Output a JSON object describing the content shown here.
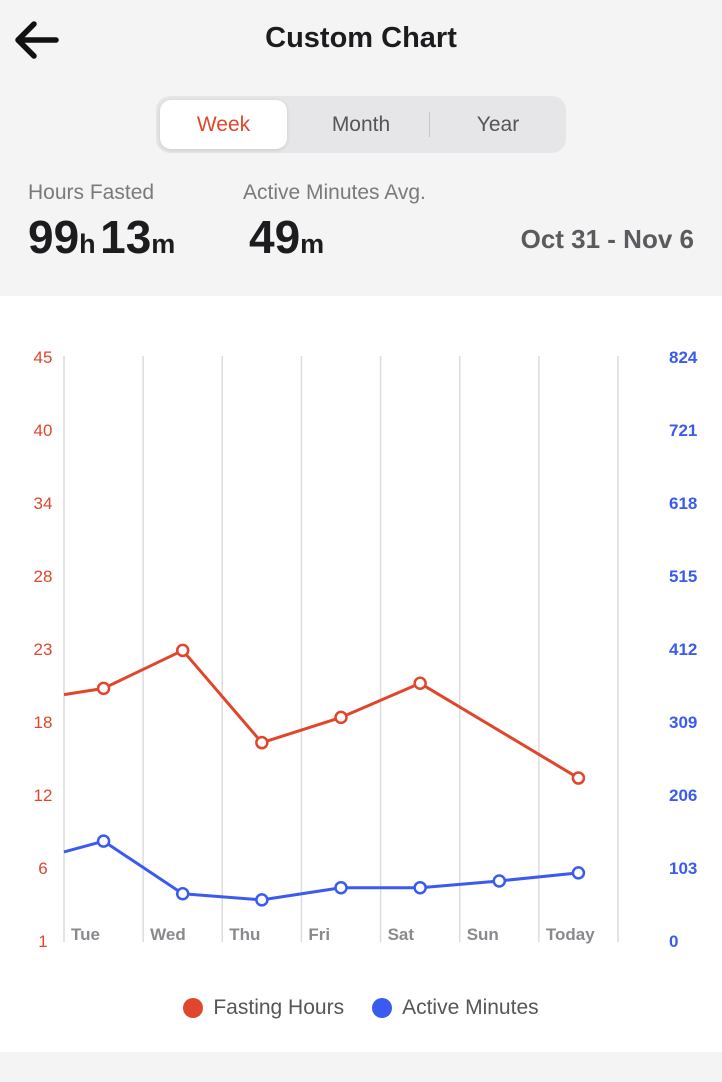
{
  "header": {
    "title": "Custom Chart",
    "back_icon": "arrow-left-icon"
  },
  "segmented": {
    "items": [
      "Week",
      "Month",
      "Year"
    ],
    "selected": "Week"
  },
  "stats": {
    "hours_fasted": {
      "label": "Hours Fasted",
      "h_value": "99",
      "h_unit": "h",
      "m_value": "13",
      "m_unit": "m"
    },
    "active_minutes": {
      "label": "Active Minutes Avg.",
      "value": "49",
      "unit": "m"
    },
    "date_range": "Oct 31 - Nov 6"
  },
  "colors": {
    "accent": "#e0462c",
    "fasting": "#e0462c",
    "active": "#3b5bf0",
    "grid": "#dcdcdf",
    "label": "#8a8a8e"
  },
  "chart_data": {
    "type": "line",
    "categories": [
      "Tue",
      "Wed",
      "Thu",
      "Fri",
      "Sat",
      "Sun",
      "Today"
    ],
    "left_axis": {
      "ticks": [
        "45",
        "40",
        "34",
        "28",
        "23",
        "18",
        "12",
        "6",
        "1"
      ],
      "ylim": [
        1,
        45
      ]
    },
    "right_axis": {
      "ticks": [
        "824",
        "721",
        "618",
        "515",
        "412",
        "309",
        "206",
        "103",
        "0"
      ],
      "ylim": [
        0,
        824
      ]
    },
    "grid": true,
    "legend_position": "bottom",
    "series": [
      {
        "name": "Fasting Hours",
        "axis": "left",
        "color": "#e0462c",
        "leading_value": 18.2,
        "points": [
          {
            "x": 0.5,
            "y": 18.7
          },
          {
            "x": 1.5,
            "y": 21.7
          },
          {
            "x": 2.5,
            "y": 14.4
          },
          {
            "x": 3.5,
            "y": 16.4
          },
          {
            "x": 4.5,
            "y": 19.1
          },
          {
            "x": 6.5,
            "y": 11.6
          }
        ]
      },
      {
        "name": "Active Minutes",
        "axis": "right",
        "color": "#3b5bf0",
        "leading_value": 89,
        "points": [
          {
            "x": 0.5,
            "y": 105
          },
          {
            "x": 1.5,
            "y": 27
          },
          {
            "x": 2.5,
            "y": 18
          },
          {
            "x": 3.5,
            "y": 36
          },
          {
            "x": 4.5,
            "y": 36
          },
          {
            "x": 5.5,
            "y": 46
          },
          {
            "x": 6.5,
            "y": 58
          }
        ]
      }
    ]
  }
}
